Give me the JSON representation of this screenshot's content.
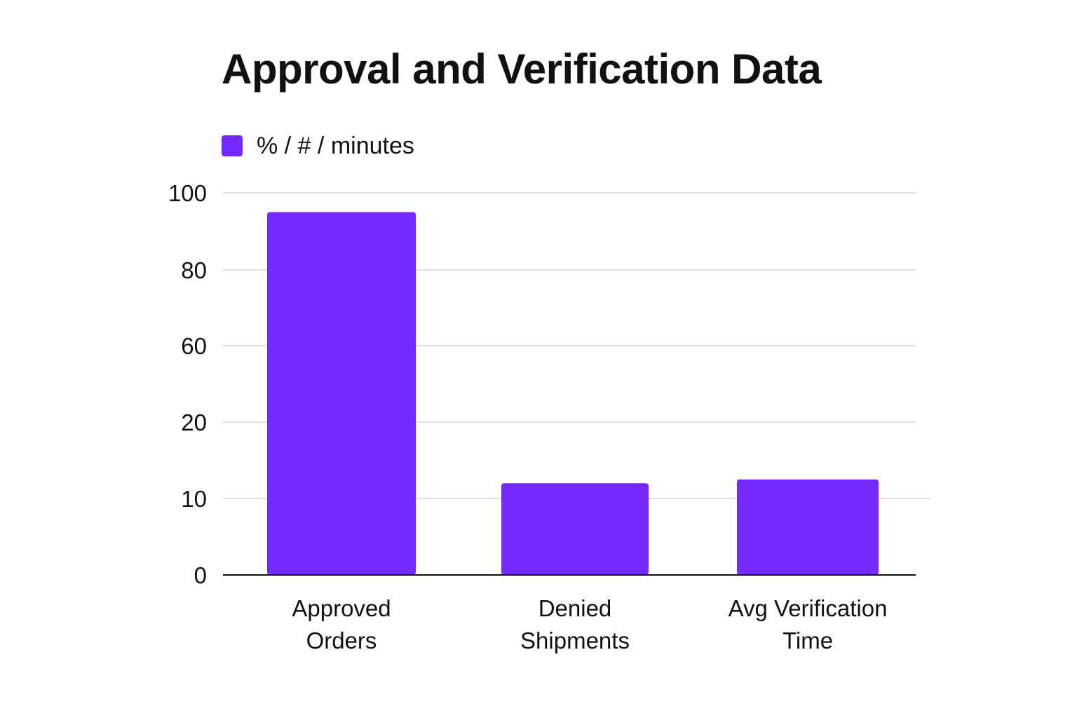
{
  "chart_data": {
    "type": "bar",
    "title": "Approval and Verification Data",
    "legend": {
      "position": "top-left",
      "entries": [
        {
          "label": "% / # / minutes",
          "color": "#7428fb"
        }
      ]
    },
    "categories": [
      [
        "Approved",
        "Orders"
      ],
      [
        "Denied",
        "Shipments"
      ],
      [
        "Avg Verification",
        "Time"
      ]
    ],
    "series": [
      {
        "name": "% / # / minutes",
        "color": "#7428fb",
        "values": [
          95,
          12,
          12.5
        ]
      }
    ],
    "y_ticks": [
      0,
      10,
      20,
      60,
      80,
      100
    ],
    "ylim": [
      0,
      100
    ],
    "grid": true,
    "colors": {
      "bar": "#7428fb",
      "grid": "#d4d4d4",
      "axis": "#111111",
      "text": "#111111"
    }
  }
}
